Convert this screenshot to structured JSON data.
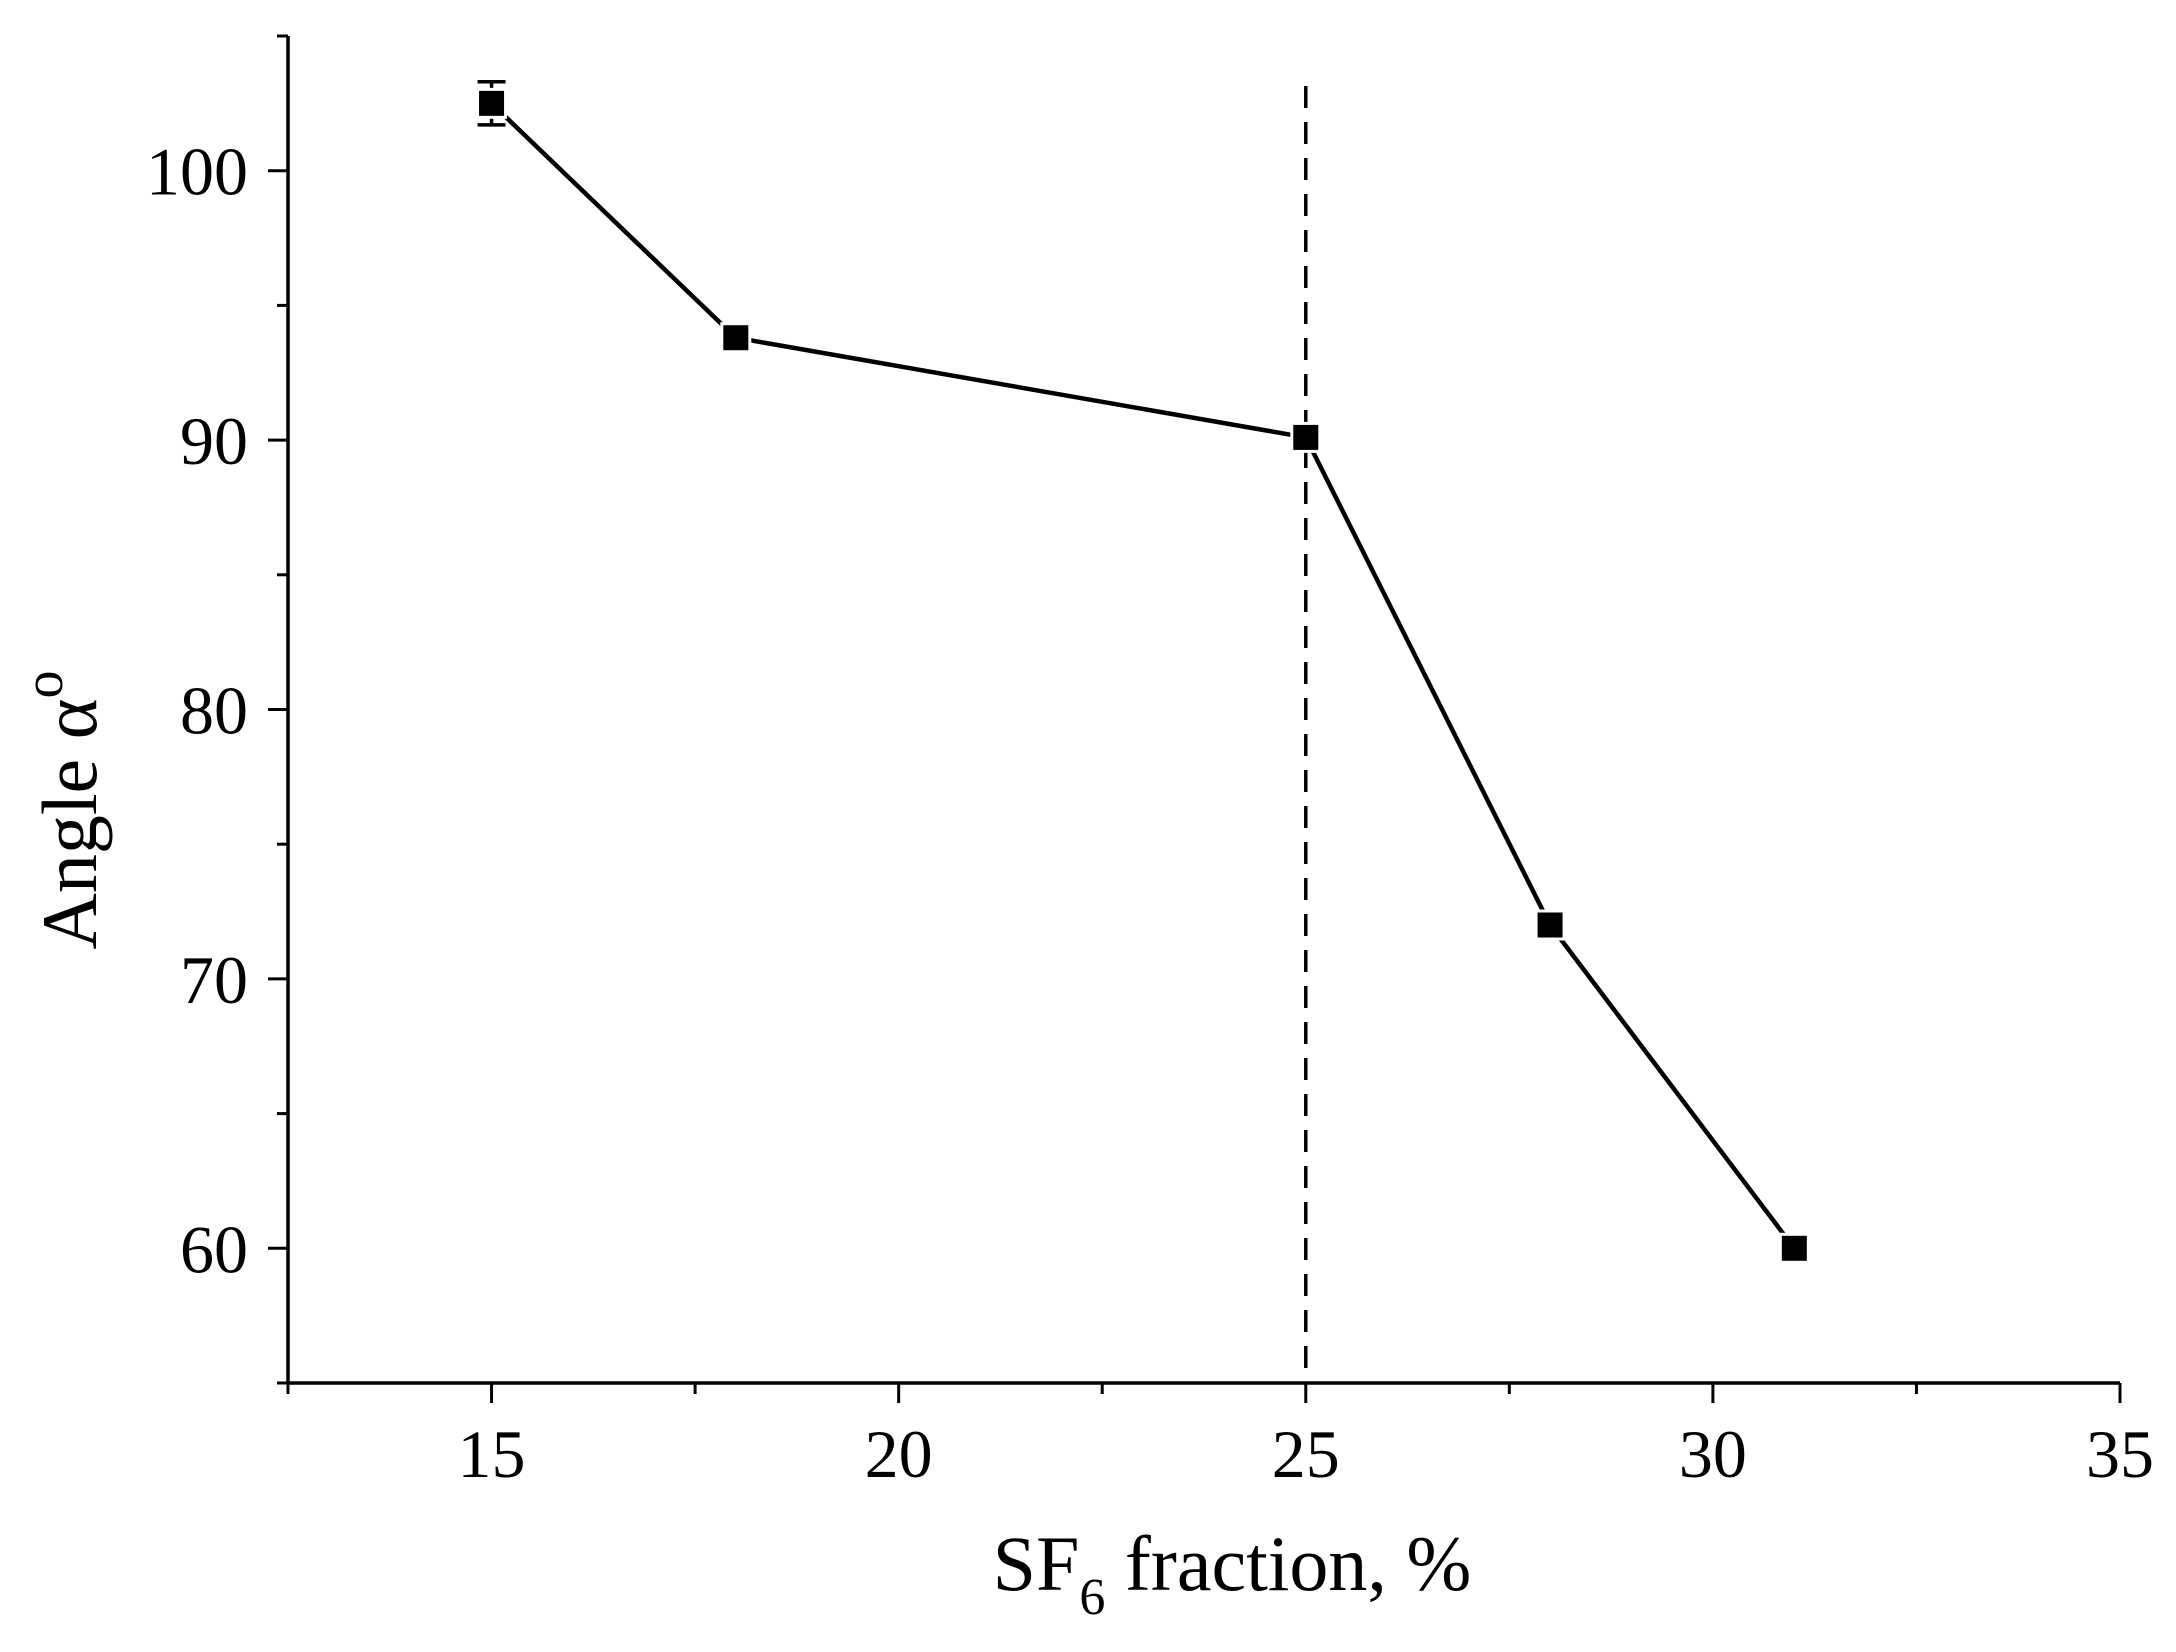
{
  "chart_data": {
    "type": "line",
    "xlabel": {
      "main": "SF",
      "sub": "6",
      "rest": " fraction, %"
    },
    "ylabel": {
      "main": "Angle α",
      "sup": "o"
    },
    "xlim": [
      12.5,
      35
    ],
    "ylim": [
      55,
      105
    ],
    "xticks_major": [
      15,
      20,
      25,
      30,
      35
    ],
    "xtick_labels": [
      "15",
      "20",
      "25",
      "30",
      "35"
    ],
    "xticks_minor_step": 2.5,
    "yticks_major": [
      60,
      70,
      80,
      90,
      100
    ],
    "ytick_labels": [
      "60",
      "70",
      "80",
      "90",
      "100"
    ],
    "yticks_minor_step": 5,
    "grid": false,
    "reference_line": {
      "x": 25,
      "style": "dashed"
    },
    "series": [
      {
        "marker": "square",
        "color": "#000000",
        "x": [
          15,
          18,
          25,
          28,
          31
        ],
        "y": [
          102.5,
          93.8,
          90.1,
          72.0,
          60.0
        ],
        "yerr": [
          0.8,
          0.4,
          0.3,
          0.3,
          0.3
        ]
      }
    ]
  }
}
